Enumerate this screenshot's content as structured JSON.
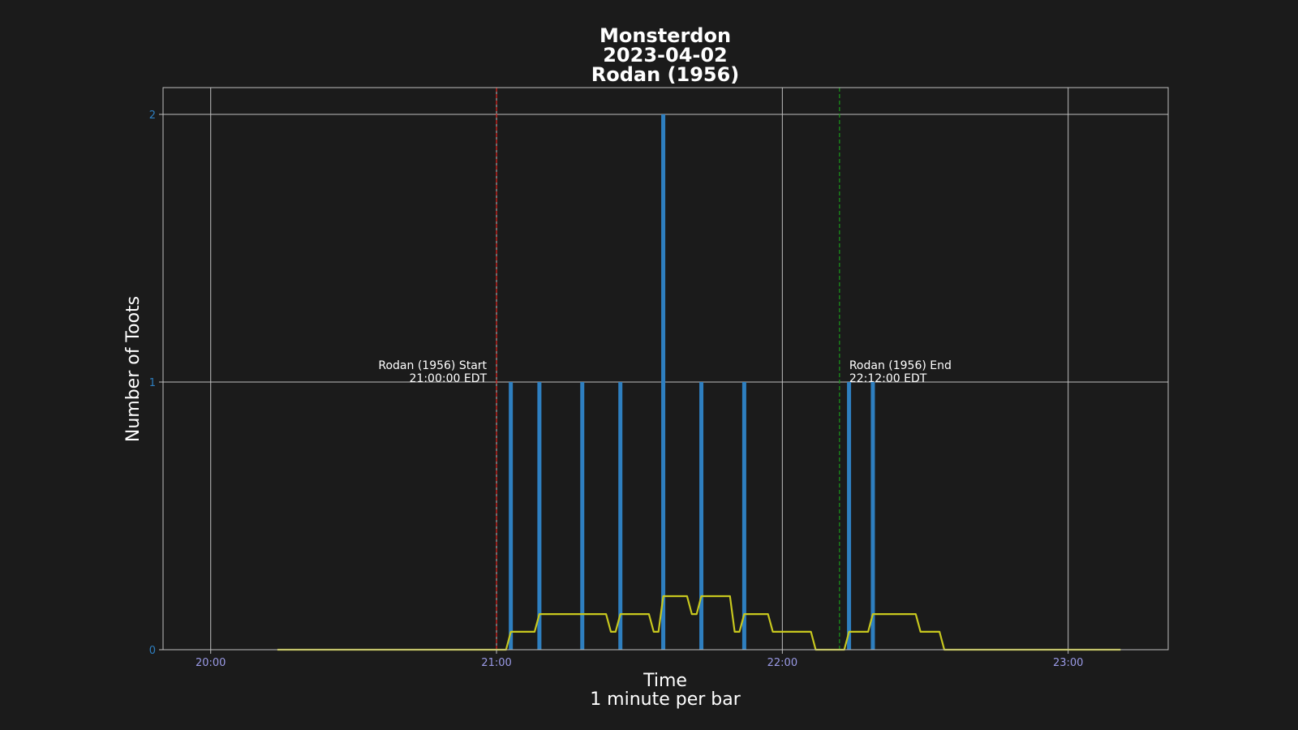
{
  "chart_data": {
    "type": "bar",
    "title_lines": [
      "Monsterdon",
      "2023-04-02",
      "Rodan (1956)"
    ],
    "xlabel": "Time",
    "xlabel_sub": "1 minute per bar",
    "ylabel": "Number of Toots",
    "x_unit": "time of day (EDT)",
    "xlim": [
      "19:50",
      "23:21"
    ],
    "ylim": [
      0,
      2.1
    ],
    "grid": true,
    "x_ticks": [
      "20:00",
      "21:00",
      "22:00",
      "23:00"
    ],
    "y_ticks": [
      "0",
      "1",
      "2"
    ],
    "bar_times": [
      "21:03",
      "21:09",
      "21:18",
      "21:26",
      "21:35",
      "21:43",
      "21:52",
      "22:14",
      "22:19"
    ],
    "values": [
      1,
      1,
      1,
      1,
      2,
      1,
      1,
      1,
      1
    ],
    "rolling_average": [
      [
        "20:14",
        0
      ],
      [
        "21:02",
        0
      ],
      [
        "21:03",
        0.067
      ],
      [
        "21:08",
        0.067
      ],
      [
        "21:09",
        0.133
      ],
      [
        "21:23",
        0.133
      ],
      [
        "21:24",
        0.067
      ],
      [
        "21:25",
        0.067
      ],
      [
        "21:26",
        0.133
      ],
      [
        "21:32",
        0.133
      ],
      [
        "21:33",
        0.067
      ],
      [
        "21:34",
        0.067
      ],
      [
        "21:35",
        0.2
      ],
      [
        "21:40",
        0.2
      ],
      [
        "21:41",
        0.133
      ],
      [
        "21:42",
        0.133
      ],
      [
        "21:43",
        0.2
      ],
      [
        "21:49",
        0.2
      ],
      [
        "21:50",
        0.067
      ],
      [
        "21:51",
        0.067
      ],
      [
        "21:52",
        0.133
      ],
      [
        "21:57",
        0.133
      ],
      [
        "21:58",
        0.067
      ],
      [
        "22:06",
        0.067
      ],
      [
        "22:07",
        0
      ],
      [
        "22:13",
        0
      ],
      [
        "22:14",
        0.067
      ],
      [
        "22:18",
        0.067
      ],
      [
        "22:19",
        0.133
      ],
      [
        "22:28",
        0.133
      ],
      [
        "22:29",
        0.067
      ],
      [
        "22:33",
        0.067
      ],
      [
        "22:34",
        0
      ],
      [
        "23:11",
        0
      ]
    ],
    "annotations": [
      {
        "time": "21:00",
        "line1": "Rodan (1956) Start",
        "line2": "21:00:00 EDT",
        "color": "#e0201a",
        "align": "right"
      },
      {
        "time": "22:12",
        "line1": "Rodan (1956) End",
        "line2": "22:12:00 EDT",
        "color": "#1a9a1a",
        "align": "left"
      }
    ],
    "colors": {
      "bars": "#2e7fc0",
      "rolling_average": "#c8c81e",
      "grid": "#bfbfbf",
      "background": "#1b1b1b"
    }
  }
}
